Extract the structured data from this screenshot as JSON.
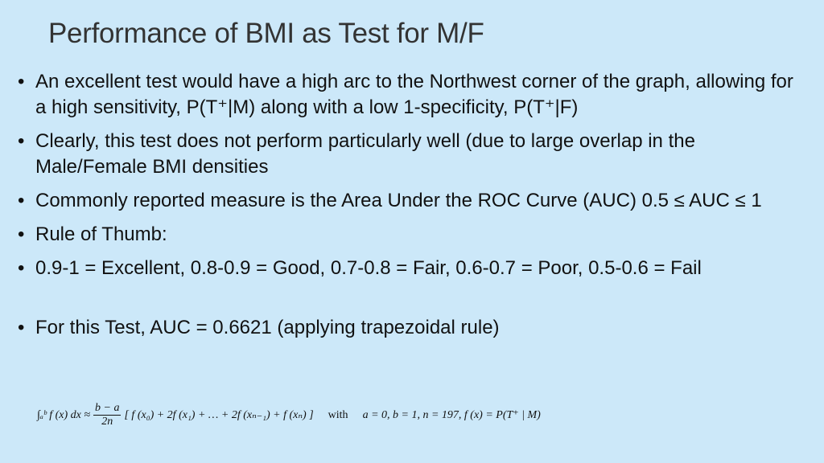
{
  "title": "Performance of BMI as Test for M/F",
  "bullets": [
    "An excellent test would have a high arc to the Northwest corner of the graph, allowing for a high sensitivity, P(T⁺|M) along with a low 1-specificity, P(T⁺|F)",
    "Clearly, this test does not perform particularly well (due to large overlap in the Male/Female BMI densities",
    "Commonly reported measure is the Area Under the ROC Curve (AUC)  0.5 ≤ AUC ≤ 1",
    "Rule of Thumb:",
    "0.9-1 = Excellent, 0.8-0.9 = Good,   0.7-0.8 = Fair, 0.6-0.7 = Poor, 0.5-0.6 = Fail",
    "For this Test, AUC = 0.6621 (applying trapezoidal rule)"
  ],
  "formula": {
    "integral": "∫ₐᵇ f (x) dx ≈",
    "frac_num": "b − a",
    "frac_den": "2n",
    "sum": "[ f (x₀) + 2f (x₁) + … + 2f (xₙ₋₁) + f (xₙ) ]",
    "with": "with",
    "conditions": "a = 0,   b = 1,   n = 197,   f (x) = P(T⁺ | M)"
  }
}
